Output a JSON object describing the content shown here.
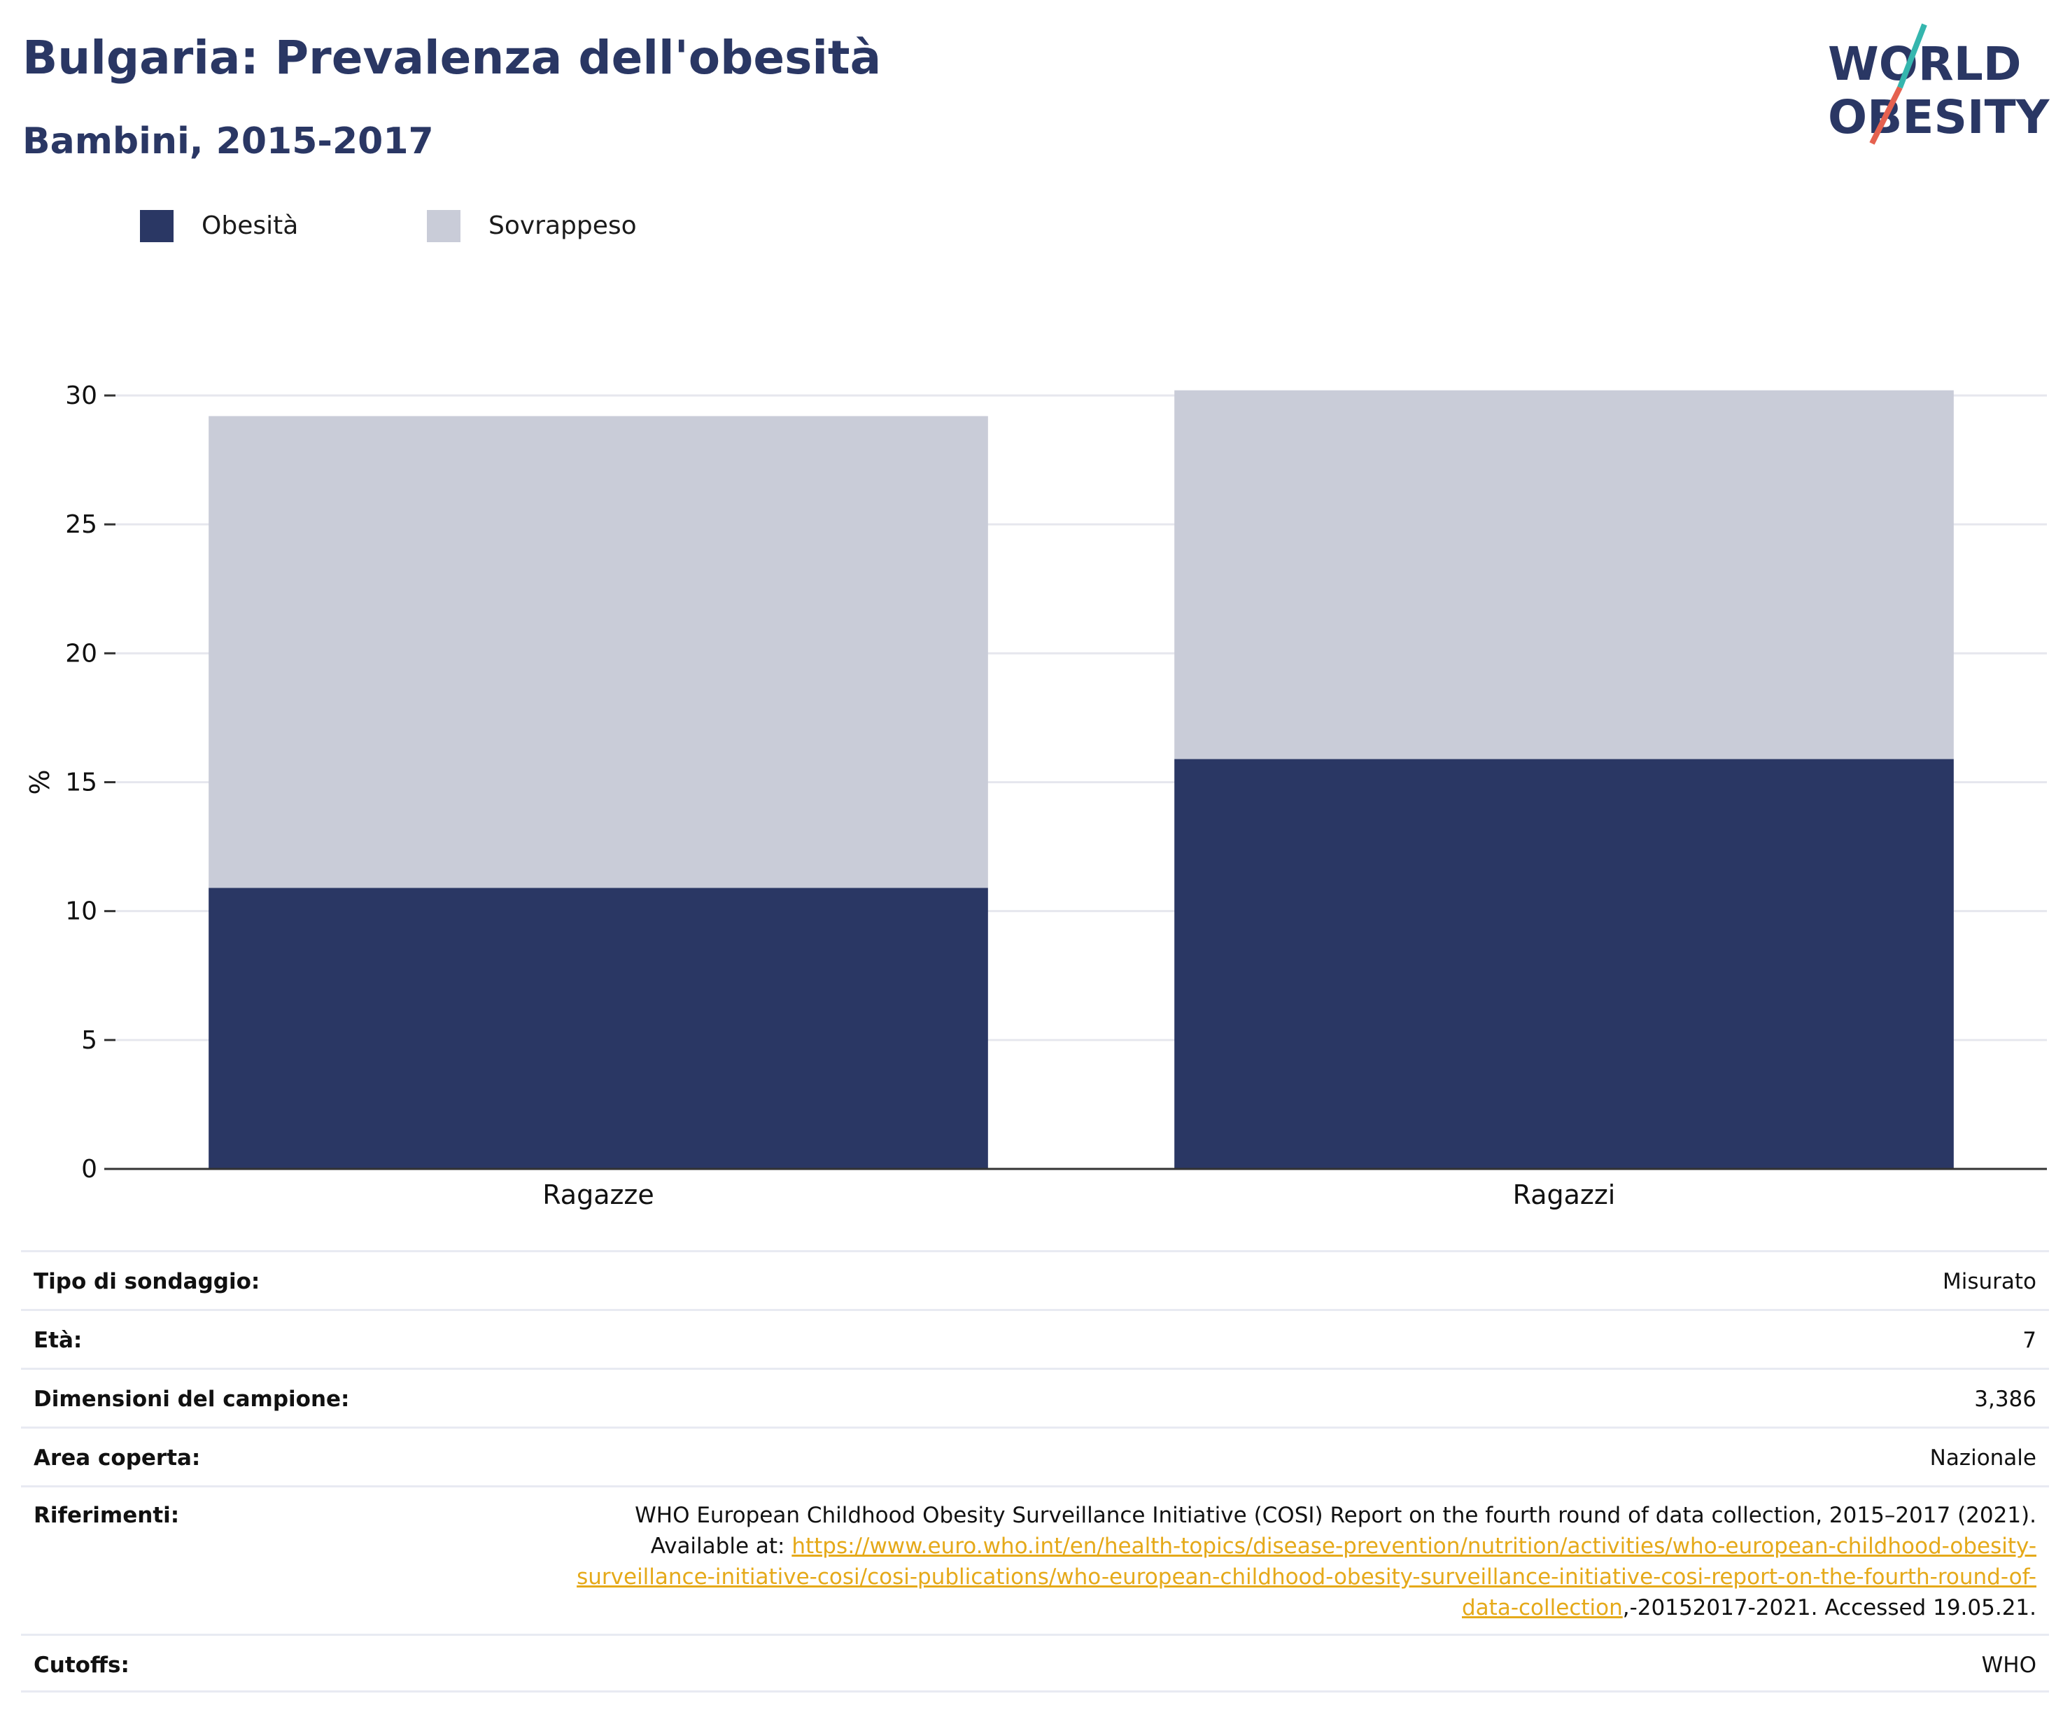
{
  "header": {
    "title": "Bulgaria: Prevalenza dell'obesità",
    "subtitle": "Bambini, 2015-2017"
  },
  "logo": {
    "line1": "WORLD",
    "line2": "OBESITY",
    "colors": {
      "text": "#2a3764",
      "slash_top": "#35b6ae",
      "slash_bottom": "#e5614f"
    }
  },
  "legend": [
    {
      "label": "Obesità",
      "color": "#2a3764"
    },
    {
      "label": "Sovrappeso",
      "color": "#c9ccd8"
    }
  ],
  "chart_data": {
    "type": "bar",
    "stacked": true,
    "categories": [
      "Ragazze",
      "Ragazzi"
    ],
    "series": [
      {
        "name": "Obesità",
        "values": [
          10.9,
          15.9
        ],
        "color": "#2a3764"
      },
      {
        "name": "Sovrappeso",
        "values": [
          18.3,
          14.3
        ],
        "color": "#c9ccd8"
      }
    ],
    "ylabel": "%",
    "ylim": [
      0,
      30
    ],
    "yticks": [
      0,
      5,
      10,
      15,
      20,
      25,
      30
    ],
    "grid": true,
    "legend_position": "top-left"
  },
  "meta": {
    "survey_label": "Tipo di sondaggio:",
    "survey_value": "Misurato",
    "age_label": "Età:",
    "age_value": "7",
    "sample_label": "Dimensioni del campione:",
    "sample_value": "3,386",
    "area_label": "Area coperta:",
    "area_value": "Nazionale",
    "ref_label": "Riferimenti:",
    "ref_text_1": "WHO European Childhood Obesity Surveillance Initiative (COSI) Report on the fourth round of data collection, 2015–2017 (2021).",
    "ref_text_2": "Available at: ",
    "ref_link": "https://www.euro.who.int/en/health-topics/disease-prevention/nutrition/activities/who-european-childhood-obesity-surveillance-initiative-cosi/cosi-publications/who-european-childhood-obesity-surveillance-initiative-cosi-report-on-the-fourth-round-of-data-collection",
    "ref_text_3": ",-20152017-2021. Accessed 19.05.21.",
    "cutoffs_label": "Cutoffs:",
    "cutoffs_value": "WHO"
  }
}
